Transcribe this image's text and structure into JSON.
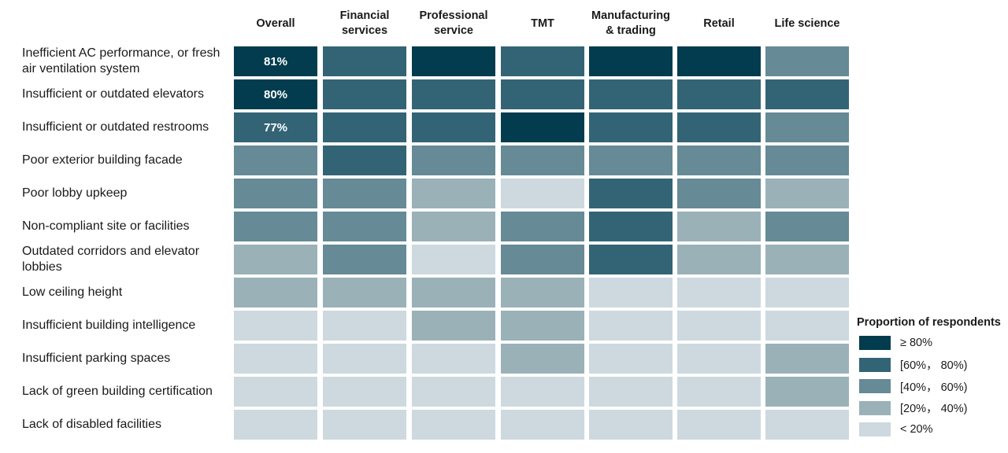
{
  "chart_data": {
    "type": "heatmap",
    "columns": [
      "Overall",
      "Financial\nservices",
      "Professional\nservice",
      "TMT",
      "Manufacturing\n& trading",
      "Retail",
      "Life science"
    ],
    "rows": [
      "Inefficient AC performance, or fresh air ventilation system",
      "Insufficient or outdated elevators",
      "Insufficient or outdated restrooms",
      "Poor exterior building facade",
      "Poor lobby upkeep",
      "Non-compliant site or facilities",
      "Outdated corridors and elevator lobbies",
      "Low ceiling height",
      "Insufficient building intelligence",
      "Insufficient parking spaces",
      "Lack of green building certification",
      "Lack of disabled facilities"
    ],
    "levels": [
      [
        4,
        3,
        4,
        3,
        4,
        4,
        2
      ],
      [
        4,
        3,
        3,
        3,
        3,
        3,
        3
      ],
      [
        3,
        3,
        3,
        4,
        3,
        3,
        2
      ],
      [
        2,
        3,
        2,
        2,
        2,
        2,
        2
      ],
      [
        2,
        2,
        1,
        0,
        3,
        2,
        1
      ],
      [
        2,
        2,
        1,
        2,
        3,
        1,
        2
      ],
      [
        1,
        2,
        0,
        2,
        3,
        1,
        1
      ],
      [
        1,
        1,
        1,
        1,
        0,
        0,
        0
      ],
      [
        0,
        0,
        1,
        1,
        0,
        0,
        0
      ],
      [
        0,
        0,
        0,
        1,
        0,
        0,
        1
      ],
      [
        0,
        0,
        0,
        0,
        0,
        0,
        1
      ],
      [
        0,
        0,
        0,
        0,
        0,
        0,
        0
      ]
    ],
    "cell_labels": [
      {
        "row": 0,
        "col": 0,
        "text": "81%"
      },
      {
        "row": 1,
        "col": 0,
        "text": "80%"
      },
      {
        "row": 2,
        "col": 0,
        "text": "77%"
      }
    ],
    "legend": {
      "title": "Proportion of respondents",
      "placement": "bottom-right",
      "items": [
        {
          "label": "≥ 80%",
          "color": "#033c4e"
        },
        {
          "label": "[60%， 80%)",
          "color": "#336475"
        },
        {
          "label": "[40%， 60%)",
          "color": "#668a96"
        },
        {
          "label": "[20%， 40%)",
          "color": "#9ab1b8"
        },
        {
          "label": "< 20%",
          "color": "#cdd9de"
        }
      ]
    },
    "level_colors": [
      "#cdd9de",
      "#9ab1b8",
      "#668a96",
      "#336475",
      "#033c4e"
    ]
  }
}
